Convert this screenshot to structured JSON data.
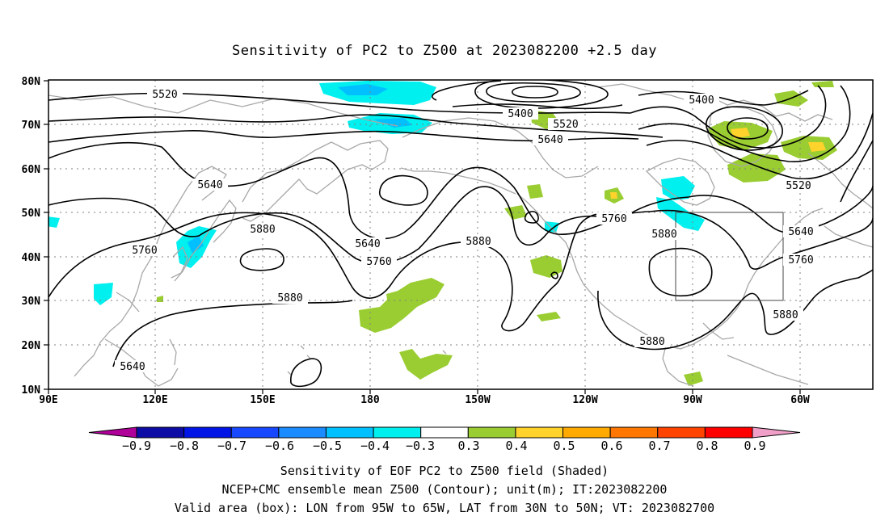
{
  "title": "Sensitivity of PC2 to Z500 at 2023082200 +2.5 day",
  "lat_labels": [
    "80N",
    "70N",
    "60N",
    "50N",
    "40N",
    "30N",
    "20N",
    "10N"
  ],
  "lon_labels": [
    "90E",
    "120E",
    "150E",
    "180",
    "150W",
    "120W",
    "90W",
    "60W"
  ],
  "contour_labels": [
    "5520",
    "5400",
    "5520",
    "5640",
    "5400",
    "5520",
    "5640",
    "5760",
    "5880",
    "5640",
    "5760",
    "5880",
    "5880",
    "5640",
    "5760",
    "5880",
    "5880",
    "5880",
    "5760",
    "5640"
  ],
  "colorbar": {
    "labels": [
      "−0.9",
      "−0.8",
      "−0.7",
      "−0.6",
      "−0.5",
      "−0.4",
      "−0.3",
      "0.3",
      "0.4",
      "0.5",
      "0.6",
      "0.7",
      "0.8",
      "0.9"
    ],
    "colors": [
      "#b0009a",
      "#0d0da6",
      "#0015e6",
      "#1747ff",
      "#1a8cff",
      "#00c0ff",
      "#00f0f0",
      "#ffffff",
      "#9acd32",
      "#ffd22c",
      "#ffaa00",
      "#ff7700",
      "#ff4400",
      "#ff0000",
      "#f0a0c8"
    ]
  },
  "shading_colors": {
    "neg_light": "#00efef",
    "neg_mid": "#00c0ff",
    "pos_light": "#9acd32",
    "pos_mid": "#ffd22c",
    "pos_high": "#ffaa00"
  },
  "valid_box": {
    "lon_west": "95W",
    "lon_east": "65W",
    "lat_south": "30N",
    "lat_north": "50N"
  },
  "caption": {
    "line1": "Sensitivity of EOF PC2 to Z500 field (Shaded)",
    "line2": "NCEP+CMC ensemble mean Z500 (Contour); unit(m); IT:2023082200",
    "line3": "Valid area (box): LON from 95W to 65W, LAT from 30N to 50N; VT: 2023082700"
  }
}
